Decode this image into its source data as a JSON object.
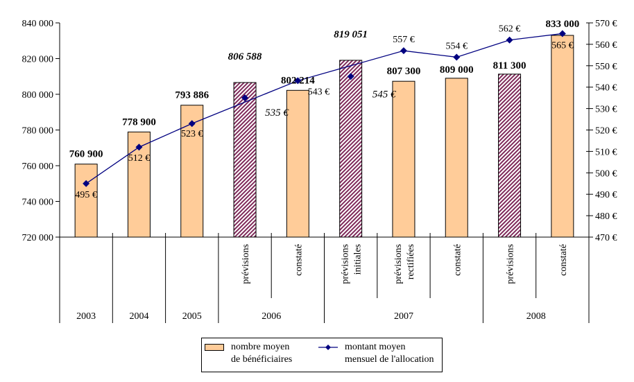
{
  "chart_data": {
    "type": "bar+line",
    "title": "",
    "left_axis": {
      "ylim": [
        720000,
        840000
      ],
      "ticks": [
        720000,
        740000,
        760000,
        780000,
        800000,
        820000,
        840000
      ],
      "tick_labels": [
        "720 000",
        "740 000",
        "760 000",
        "780 000",
        "800 000",
        "820 000",
        "840 000"
      ]
    },
    "right_axis": {
      "ylim": [
        470,
        570
      ],
      "ticks": [
        470,
        480,
        490,
        500,
        510,
        520,
        530,
        540,
        550,
        560,
        570
      ],
      "tick_labels": [
        "470 €",
        "480 €",
        "490 €",
        "500 €",
        "510 €",
        "520 €",
        "530 €",
        "540 €",
        "550 €",
        "560 €",
        "570 €"
      ]
    },
    "categories": [
      {
        "sub": "",
        "year": "2003"
      },
      {
        "sub": "",
        "year": "2004"
      },
      {
        "sub": "",
        "year": "2005"
      },
      {
        "sub": "prévisions",
        "year": "2006"
      },
      {
        "sub": "constaté",
        "year": "2006"
      },
      {
        "sub": "prévisions initiales",
        "year": "2007"
      },
      {
        "sub": "prévisions rectifiées",
        "year": "2007"
      },
      {
        "sub": "constaté",
        "year": "2007"
      },
      {
        "sub": "prévisions",
        "year": "2008"
      },
      {
        "sub": "constaté",
        "year": "2008"
      }
    ],
    "year_groups": [
      {
        "year": "2003",
        "span": 1
      },
      {
        "year": "2004",
        "span": 1
      },
      {
        "year": "2005",
        "span": 1
      },
      {
        "year": "2006",
        "span": 2
      },
      {
        "year": "2007",
        "span": 3
      },
      {
        "year": "2008",
        "span": 2
      }
    ],
    "series": [
      {
        "name": "nombre moyen de bénéficiaires",
        "kind": "bar",
        "axis": "left",
        "values": [
          760900,
          778900,
          793886,
          806588,
          802214,
          819051,
          807300,
          809000,
          811300,
          833000
        ],
        "labels": [
          "760 900",
          "778 900",
          "793 886",
          "806 588",
          "802 214",
          "819 051",
          "807 300",
          "809 000",
          "811 300",
          "833 000"
        ],
        "hatched": [
          false,
          false,
          false,
          true,
          false,
          true,
          false,
          false,
          true,
          false
        ],
        "label_italic": [
          false,
          false,
          false,
          true,
          false,
          true,
          false,
          false,
          false,
          false
        ],
        "color": "#FFCC99",
        "hatch_color": "#7F2A5A"
      },
      {
        "name": "montant moyen mensuel de l'allocation",
        "kind": "line",
        "axis": "right",
        "values": [
          495,
          512,
          523,
          535,
          543,
          545,
          557,
          554,
          562,
          565
        ],
        "labels": [
          "495 €",
          "512 €",
          "523 €",
          "535 €",
          "543 €",
          "545 €",
          "557 €",
          "554 €",
          "562 €",
          "565 €"
        ],
        "on_line": [
          true,
          true,
          true,
          false,
          true,
          false,
          true,
          true,
          true,
          true
        ],
        "label_italic": [
          false,
          false,
          false,
          true,
          false,
          true,
          false,
          false,
          false,
          false
        ],
        "color": "#000080"
      }
    ],
    "legend": {
      "position": "bottom",
      "items": [
        {
          "line1": "nombre moyen",
          "line2": "de bénéficiaires",
          "symbol": "bar"
        },
        {
          "line1": "montant moyen",
          "line2": "mensuel de l'allocation",
          "symbol": "line-diamond"
        }
      ]
    },
    "grid": false
  }
}
